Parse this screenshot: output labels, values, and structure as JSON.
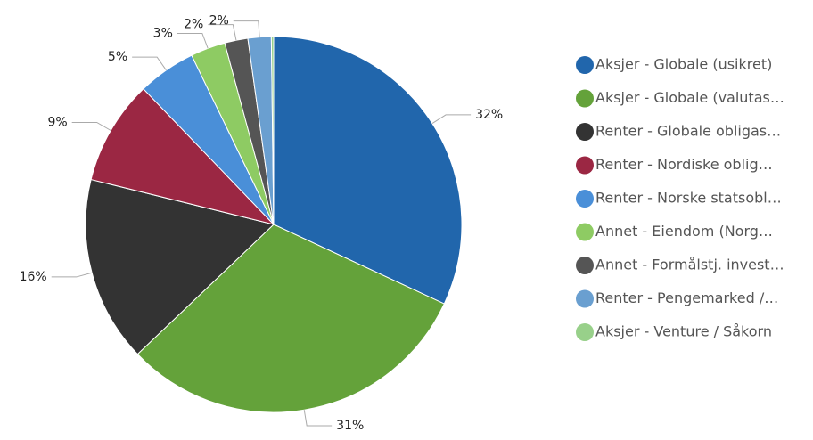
{
  "chart_data": {
    "type": "pie",
    "categories": [
      "Aksjer - Globale (usikret)",
      "Aksjer - Globale (valutas…",
      "Renter - Globale obligas…",
      "Renter - Nordiske oblig…",
      "Renter - Norske statsobl…",
      "Annet - Eiendom (Norg…",
      "Annet - Formålstj. invest…",
      "Renter - Pengemarked /…",
      "Aksjer - Venture / Såkorn"
    ],
    "values": [
      32,
      31,
      16,
      9,
      5,
      3,
      2,
      2,
      0.2
    ],
    "value_labels": [
      "32%",
      "31%",
      "16%",
      "9%",
      "5%",
      "3%",
      "2%",
      "2%",
      null
    ],
    "colors": [
      "#2166ac",
      "#64a23a",
      "#333333",
      "#9b2743",
      "#4a8fd8",
      "#8ecb63",
      "#555555",
      "#6a9fd0",
      "#98d08a"
    ],
    "legend": "right"
  }
}
